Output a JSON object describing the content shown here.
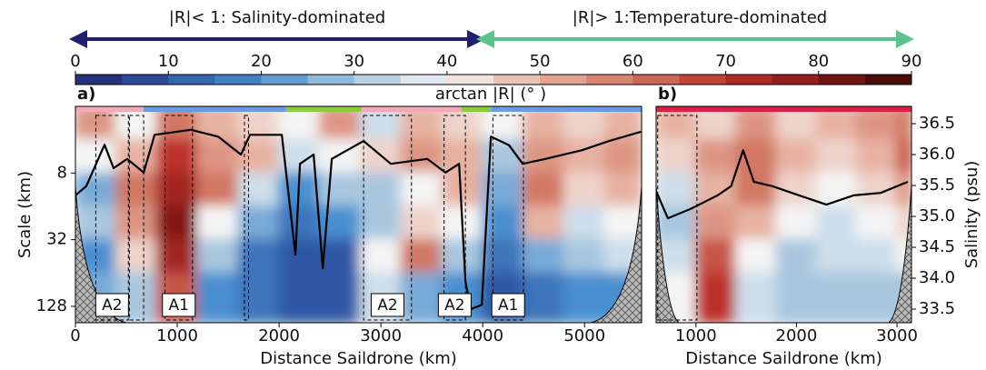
{
  "header": {
    "left_arrow_label": "|R|< 1: Salinity-dominated",
    "right_arrow_label": "|R|> 1:Temperature-dominated"
  },
  "colorbar": {
    "label": "arctan |R| (° )",
    "lim": [
      0,
      90
    ],
    "ticks": [
      0,
      10,
      20,
      30,
      40,
      50,
      60,
      70,
      80,
      90
    ],
    "colormap": [
      "#26256e",
      "#2d58a6",
      "#4a8fd0",
      "#a8c7df",
      "#f4f4f4",
      "#e7b2a2",
      "#d27763",
      "#bc3129",
      "#851818",
      "#3a0808"
    ]
  },
  "chart_data": [
    {
      "type": "heatmap",
      "panel_label": "a)",
      "xlabel": "Distance Saildrone (km)",
      "ylabel": "Scale (km)",
      "xlim": [
        0,
        5560
      ],
      "xticks": [
        0,
        1000,
        2000,
        3000,
        4000,
        5000
      ],
      "ylim": [
        2,
        180
      ],
      "ylog": true,
      "yticks": [
        8,
        32,
        128
      ],
      "y2lim": [
        33.28,
        36.78
      ],
      "x_edges": [
        0,
        400,
        800,
        1200,
        1600,
        2000,
        2400,
        2800,
        3200,
        3600,
        4000,
        4400,
        4800,
        5200,
        5560
      ],
      "y_edges": [
        2,
        4,
        8,
        16,
        32,
        64,
        180
      ],
      "z": [
        [
          55,
          40,
          60,
          50,
          45,
          40,
          55,
          35,
          50,
          45,
          40,
          50,
          45,
          50
        ],
        [
          40,
          50,
          70,
          55,
          50,
          35,
          40,
          45,
          55,
          50,
          30,
          55,
          50,
          55
        ],
        [
          25,
          60,
          75,
          60,
          35,
          20,
          30,
          30,
          40,
          50,
          25,
          60,
          45,
          50
        ],
        [
          30,
          55,
          80,
          40,
          25,
          15,
          20,
          30,
          45,
          40,
          20,
          50,
          35,
          40
        ],
        [
          20,
          45,
          75,
          30,
          15,
          10,
          10,
          40,
          60,
          30,
          15,
          25,
          30,
          35
        ],
        [
          25,
          30,
          65,
          20,
          15,
          10,
          10,
          35,
          25,
          20,
          10,
          15,
          20,
          20
        ]
      ],
      "line": {
        "color": "#000000",
        "axis": "y2",
        "x": [
          0,
          107,
          286,
          375,
          509,
          670,
          777,
          1134,
          1402,
          1625,
          1714,
          2027,
          2161,
          2205,
          2339,
          2429,
          2518,
          2830,
          3098,
          3455,
          3634,
          3768,
          3830,
          3884,
          3991,
          4080,
          4259,
          4393,
          4616,
          4973,
          5241,
          5554
        ],
        "values": [
          35.34,
          35.49,
          36.16,
          35.78,
          35.93,
          35.71,
          36.32,
          36.4,
          36.29,
          36.0,
          36.32,
          36.32,
          34.38,
          35.85,
          36.0,
          34.16,
          35.93,
          36.22,
          35.85,
          35.93,
          35.71,
          35.85,
          33.94,
          33.5,
          33.57,
          36.29,
          36.15,
          35.85,
          35.93,
          36.07,
          36.22,
          36.37
        ]
      },
      "regions": [
        {
          "x": [
            0,
            670
          ],
          "color": "#f4a9b8"
        },
        {
          "x": [
            670,
            2070
          ],
          "color": "#6a9be0"
        },
        {
          "x": [
            2070,
            2810
          ],
          "color": "#8ccc3c"
        },
        {
          "x": [
            2810,
            3790
          ],
          "color": "#f4a9b8"
        },
        {
          "x": [
            3790,
            4080
          ],
          "color": "#8ccc3c"
        },
        {
          "x": [
            4080,
            5560
          ],
          "color": "#6a9be0"
        }
      ],
      "boxes": [
        {
          "x": [
            200,
            520
          ],
          "label": "A2"
        },
        {
          "x": [
            530,
            670
          ]
        },
        {
          "x": [
            880,
            1150
          ],
          "label": "A1"
        },
        {
          "x": [
            1660,
            1700
          ]
        },
        {
          "x": [
            2830,
            3300
          ],
          "label": "A2"
        },
        {
          "x": [
            3620,
            3830
          ],
          "label": "A2"
        },
        {
          "x": [
            4100,
            4400
          ],
          "label": "A1"
        }
      ]
    },
    {
      "type": "heatmap",
      "panel_label": "b)",
      "xlabel": "Distance Saildrone (km)",
      "y2label": "Salinity (psu)",
      "xlim": [
        604,
        3144
      ],
      "xticks": [
        1000,
        2000,
        3000
      ],
      "ylim": [
        2,
        180
      ],
      "ylog": true,
      "y2lim": [
        33.28,
        36.78
      ],
      "y2ticks": [
        36.5,
        {
          "value": 36,
          "label": "36.0"
        },
        35.5,
        {
          "value": 35,
          "label": "35.0"
        },
        34.5,
        {
          "value": 34,
          "label": "34.0"
        },
        33.5
      ],
      "x_edges": [
        604,
        1000,
        1400,
        1800,
        2200,
        2600,
        3000,
        3144
      ],
      "y_edges": [
        2,
        4,
        8,
        16,
        32,
        64,
        180
      ],
      "z": [
        [
          50,
          45,
          55,
          45,
          50,
          55,
          60
        ],
        [
          45,
          55,
          60,
          50,
          45,
          50,
          65
        ],
        [
          35,
          50,
          60,
          45,
          40,
          45,
          55
        ],
        [
          30,
          55,
          50,
          40,
          35,
          40,
          45
        ],
        [
          35,
          65,
          40,
          30,
          35,
          35,
          40
        ],
        [
          40,
          70,
          35,
          30,
          30,
          30,
          30
        ]
      ],
      "line": {
        "color": "#000000",
        "axis": "y2",
        "x": [
          604,
          721,
          946,
          1216,
          1351,
          1469,
          1577,
          1757,
          2027,
          2298,
          2568,
          2838,
          3108
        ],
        "values": [
          35.41,
          34.97,
          35.12,
          35.34,
          35.49,
          36.07,
          35.56,
          35.49,
          35.34,
          35.19,
          35.34,
          35.38,
          35.56
        ]
      },
      "regions": [
        {
          "x": [
            604,
            3144
          ],
          "color": "#dc1f45"
        }
      ],
      "boxes": [
        {
          "x": [
            620,
            1010
          ]
        }
      ]
    }
  ]
}
